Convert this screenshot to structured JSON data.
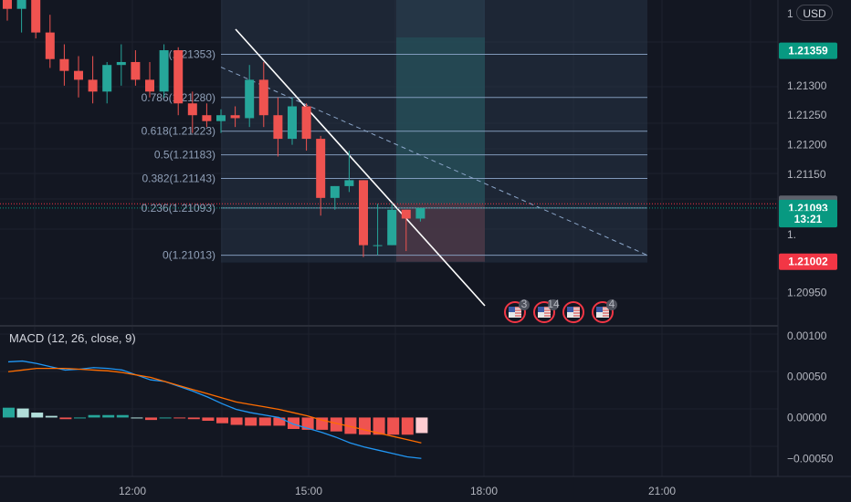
{
  "currency": "USD",
  "price_axis": {
    "ticks": [
      {
        "value": 1.21353,
        "label": "1.2135"
      },
      {
        "value": 1.213,
        "label": "1.21300"
      },
      {
        "value": 1.2125,
        "label": "1.21250"
      },
      {
        "value": 1.212,
        "label": "1.21200"
      },
      {
        "value": 1.2115,
        "label": "1.21150"
      },
      {
        "value": 1.2095,
        "label": "1.20950"
      }
    ],
    "top_label": "1",
    "partial_label": "1.",
    "tags": [
      {
        "value": 1.21359,
        "label": "1.21359",
        "color": "#089981"
      },
      {
        "value": 1.211,
        "label": "1.21100",
        "color": "#5d606b"
      },
      {
        "value": 1.21093,
        "label": "1.21093",
        "color": "#089981"
      },
      {
        "value": 1.21074,
        "label": "13:21",
        "color": "#089981"
      },
      {
        "value": 1.21002,
        "label": "1.21002",
        "color": "#f23645"
      }
    ]
  },
  "time_axis": [
    "12:00",
    "15:00",
    "18:00",
    "21:00"
  ],
  "fib": {
    "levels": [
      {
        "ratio": "1",
        "label": "1(1.21353)",
        "price": 1.21353
      },
      {
        "ratio": "0.786",
        "label": "0.786(1.21280)",
        "price": 1.2128
      },
      {
        "ratio": "0.618",
        "label": "0.618(1.21223)",
        "price": 1.21223
      },
      {
        "ratio": "0.5",
        "label": "0.5(1.21183)",
        "price": 1.21183
      },
      {
        "ratio": "0.382",
        "label": "0.382(1.21143)",
        "price": 1.21143
      },
      {
        "ratio": "0.236",
        "label": "0.236(1.21093)",
        "price": 1.21093
      },
      {
        "ratio": "0",
        "label": "0(1.21013)",
        "price": 1.21013
      }
    ]
  },
  "events": [
    {
      "count": "3"
    },
    {
      "count": "14"
    },
    {
      "count": ""
    },
    {
      "count": "4"
    }
  ],
  "macd": {
    "title": "MACD (12, 26, close, 9)",
    "ticks": [
      {
        "value": 0.001,
        "label": "0.00100"
      },
      {
        "value": 0.0005,
        "label": "0.00050"
      },
      {
        "value": 0,
        "label": "0.00000"
      },
      {
        "value": -0.0005,
        "label": "−0.00050"
      }
    ]
  },
  "chart_data": {
    "type": "candlestick",
    "symbol_currency": "USD",
    "candles": [
      {
        "o": 1.21475,
        "h": 1.2151,
        "l": 1.2141,
        "c": 1.2143
      },
      {
        "o": 1.2143,
        "h": 1.2148,
        "l": 1.2139,
        "c": 1.21455
      },
      {
        "o": 1.21455,
        "h": 1.2148,
        "l": 1.2138,
        "c": 1.2139
      },
      {
        "o": 1.2139,
        "h": 1.2142,
        "l": 1.2133,
        "c": 1.21345
      },
      {
        "o": 1.21345,
        "h": 1.2137,
        "l": 1.213,
        "c": 1.21325
      },
      {
        "o": 1.21325,
        "h": 1.2135,
        "l": 1.2128,
        "c": 1.2131
      },
      {
        "o": 1.2131,
        "h": 1.2135,
        "l": 1.2127,
        "c": 1.2129
      },
      {
        "o": 1.2129,
        "h": 1.2134,
        "l": 1.2127,
        "c": 1.21335
      },
      {
        "o": 1.21335,
        "h": 1.2137,
        "l": 1.213,
        "c": 1.2134
      },
      {
        "o": 1.2134,
        "h": 1.2136,
        "l": 1.213,
        "c": 1.2131
      },
      {
        "o": 1.2131,
        "h": 1.2134,
        "l": 1.2128,
        "c": 1.2129
      },
      {
        "o": 1.2129,
        "h": 1.2137,
        "l": 1.2128,
        "c": 1.2136
      },
      {
        "o": 1.2136,
        "h": 1.21365,
        "l": 1.2125,
        "c": 1.2127
      },
      {
        "o": 1.2127,
        "h": 1.2129,
        "l": 1.2122,
        "c": 1.2125
      },
      {
        "o": 1.2125,
        "h": 1.2127,
        "l": 1.2123,
        "c": 1.2124
      },
      {
        "o": 1.2124,
        "h": 1.2126,
        "l": 1.2122,
        "c": 1.2125
      },
      {
        "o": 1.2125,
        "h": 1.21265,
        "l": 1.2123,
        "c": 1.21245
      },
      {
        "o": 1.21245,
        "h": 1.21335,
        "l": 1.2123,
        "c": 1.2131
      },
      {
        "o": 1.2131,
        "h": 1.2134,
        "l": 1.2123,
        "c": 1.2125
      },
      {
        "o": 1.2125,
        "h": 1.2128,
        "l": 1.2118,
        "c": 1.2121
      },
      {
        "o": 1.2121,
        "h": 1.2128,
        "l": 1.212,
        "c": 1.21265
      },
      {
        "o": 1.21265,
        "h": 1.2127,
        "l": 1.2119,
        "c": 1.2121
      },
      {
        "o": 1.2121,
        "h": 1.21215,
        "l": 1.2108,
        "c": 1.2111
      },
      {
        "o": 1.2111,
        "h": 1.2113,
        "l": 1.2109,
        "c": 1.2113
      },
      {
        "o": 1.2113,
        "h": 1.2119,
        "l": 1.2112,
        "c": 1.2114
      },
      {
        "o": 1.2114,
        "h": 1.2114,
        "l": 1.2101,
        "c": 1.2103
      },
      {
        "o": 1.2103,
        "h": 1.211,
        "l": 1.21013,
        "c": 1.2103
      },
      {
        "o": 1.2103,
        "h": 1.211,
        "l": 1.2103,
        "c": 1.2109
      },
      {
        "o": 1.2109,
        "h": 1.2109,
        "l": 1.2102,
        "c": 1.21075
      },
      {
        "o": 1.21075,
        "h": 1.2109,
        "l": 1.2107,
        "c": 1.21093
      }
    ],
    "macd_line": [
      0.00068,
      0.00069,
      0.00066,
      0.00062,
      0.00058,
      0.00059,
      0.00061,
      0.0006,
      0.00058,
      0.00052,
      0.00046,
      0.00044,
      0.00038,
      0.00032,
      0.00025,
      0.00017,
      0.0001,
      6e-05,
      3e-05,
      0.0,
      -8e-05,
      -0.00013,
      -0.00018,
      -0.00024,
      -0.00031,
      -0.00036,
      -0.0004,
      -0.00044,
      -0.00048,
      -0.0005
    ],
    "signal_line": [
      0.00056,
      0.00058,
      0.0006,
      0.0006,
      0.0006,
      0.00059,
      0.00058,
      0.00057,
      0.00055,
      0.00052,
      0.00049,
      0.00044,
      0.00039,
      0.00034,
      0.00029,
      0.00024,
      0.00019,
      0.00016,
      0.00013,
      0.0001,
      6e-05,
      2e-05,
      -3e-05,
      -7e-05,
      -0.00011,
      -0.00015,
      -0.00019,
      -0.00023,
      -0.00027,
      -0.00031
    ],
    "histogram": [
      0.00012,
      0.00011,
      6e-05,
      2e-05,
      -2e-05,
      0.0,
      3e-05,
      3e-05,
      3e-05,
      0.0,
      -3e-05,
      0.0,
      -1e-05,
      -2e-05,
      -4e-05,
      -7e-05,
      -9e-05,
      -0.0001,
      -0.0001,
      -0.0001,
      -0.00014,
      -0.00015,
      -0.00015,
      -0.00017,
      -0.0002,
      -0.00021,
      -0.00021,
      -0.00021,
      -0.00021,
      -0.00019
    ],
    "price_ylim": [
      1.20895,
      1.21445
    ],
    "macd_ylim": [
      -0.00072,
      0.00112
    ],
    "x_labels": [
      "12:00",
      "15:00",
      "18:00",
      "21:00"
    ],
    "grid": true
  }
}
